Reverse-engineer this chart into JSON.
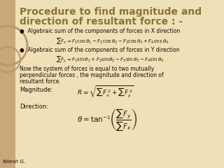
{
  "title_line1": "Procedure to find magnitude and",
  "title_line2": "direction of resultant force : -",
  "title_color": "#8B7336",
  "title_fontsize": 10.0,
  "bg_color": "#F0E0B8",
  "left_strip_color": "#C8A878",
  "circle_color": "#B89868",
  "bullet1": "Algebraic sum of the components of forces in X direction",
  "formula_x": "$\\sum F_x = F_1\\cos\\theta_1 - F_2\\cos\\theta_2 - F_3\\cos\\theta_3 + F_4\\cos\\theta_4$",
  "bullet2": "Algebraic sum of the components of forces in Y direction",
  "formula_y": "$\\sum F_y = F_1\\sin\\theta_1 + F_2\\sin\\theta_2 - F_3\\sin\\theta_3 - F_4\\sin\\theta_4$",
  "para_line1": "Now the system of forces is equal to two mutually",
  "para_line2": "perpendicular forces , the magnitude and direction of",
  "para_line3": "resultant force.",
  "magnitude_label": "Magnitude:",
  "magnitude_formula": "$R = \\sqrt{\\sum F_x^{\\,2} + \\sum F_y^{\\,2}}$",
  "direction_label": "Direction:",
  "direction_formula": "$\\theta = \\tan^{-1}\\!\\left(\\dfrac{\\sum F_y}{\\sum F_x}\\right)$",
  "footer": "Nilesh G.",
  "text_color": "#1A1000",
  "formula_color": "#2A1800",
  "bullet_color": "#4A3800"
}
